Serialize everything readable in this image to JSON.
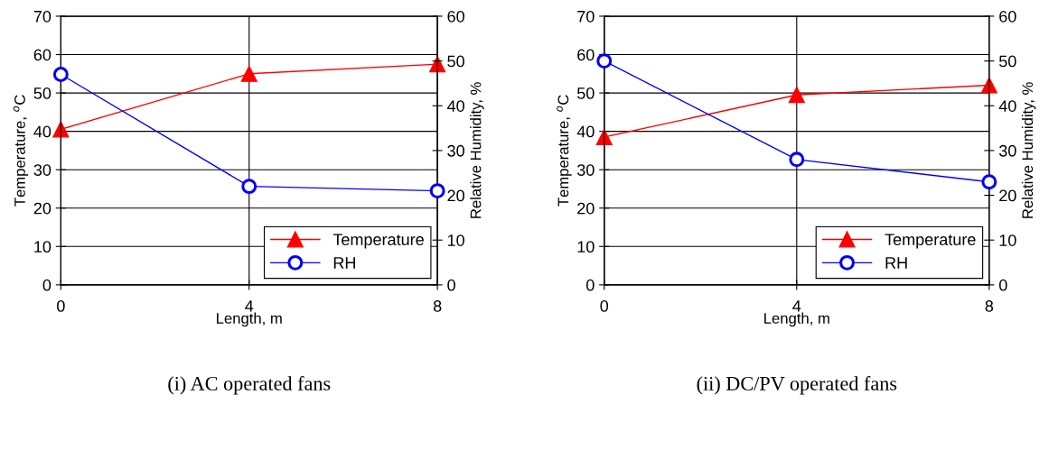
{
  "chart_data": [
    {
      "type": "line",
      "title": "(i) AC operated fans",
      "xlabel": "Length, m",
      "ylabel": "Temperature, $^{o}$C",
      "y2label": "Relative Humidity, %",
      "x": [
        0,
        4,
        8
      ],
      "xlim": [
        0,
        8
      ],
      "xticks": [
        0,
        4,
        8
      ],
      "ylim": [
        0,
        70
      ],
      "yticks": [
        0,
        10,
        20,
        30,
        40,
        50,
        60,
        70
      ],
      "y2lim": [
        0,
        60
      ],
      "y2ticks": [
        0,
        10,
        20,
        30,
        40,
        50,
        60
      ],
      "grid": true,
      "legend": "bottom right",
      "series": [
        {
          "name": "Temperature",
          "color": "#ff0000",
          "values": [
            40.5,
            55,
            57.5
          ],
          "marker": "triangle"
        },
        {
          "name": "RH",
          "color": "#0000ff",
          "values": [
            47,
            22,
            21
          ],
          "marker": "circle",
          "axis": "y2"
        }
      ]
    },
    {
      "type": "line",
      "title": "(ii) DC/PV operated fans",
      "xlabel": "Length, m",
      "ylabel": "Temperature, $^{o}$C",
      "y2label": "Relative Humidity, %",
      "x": [
        0,
        4,
        8
      ],
      "xlim": [
        0,
        8
      ],
      "xticks": [
        0,
        4,
        8
      ],
      "ylim": [
        0,
        70
      ],
      "yticks": [
        0,
        10,
        20,
        30,
        40,
        50,
        60,
        70
      ],
      "y2lim": [
        0,
        60
      ],
      "y2ticks": [
        0,
        10,
        20,
        30,
        40,
        50,
        60
      ],
      "grid": true,
      "legend": "bottom right",
      "series": [
        {
          "name": "Temperature",
          "color": "#ff0000",
          "values": [
            38.5,
            49.5,
            52
          ],
          "marker": "triangle"
        },
        {
          "name": "RH",
          "color": "#0000ff",
          "values": [
            50,
            28,
            23
          ],
          "marker": "circle",
          "axis": "y2"
        }
      ]
    }
  ]
}
